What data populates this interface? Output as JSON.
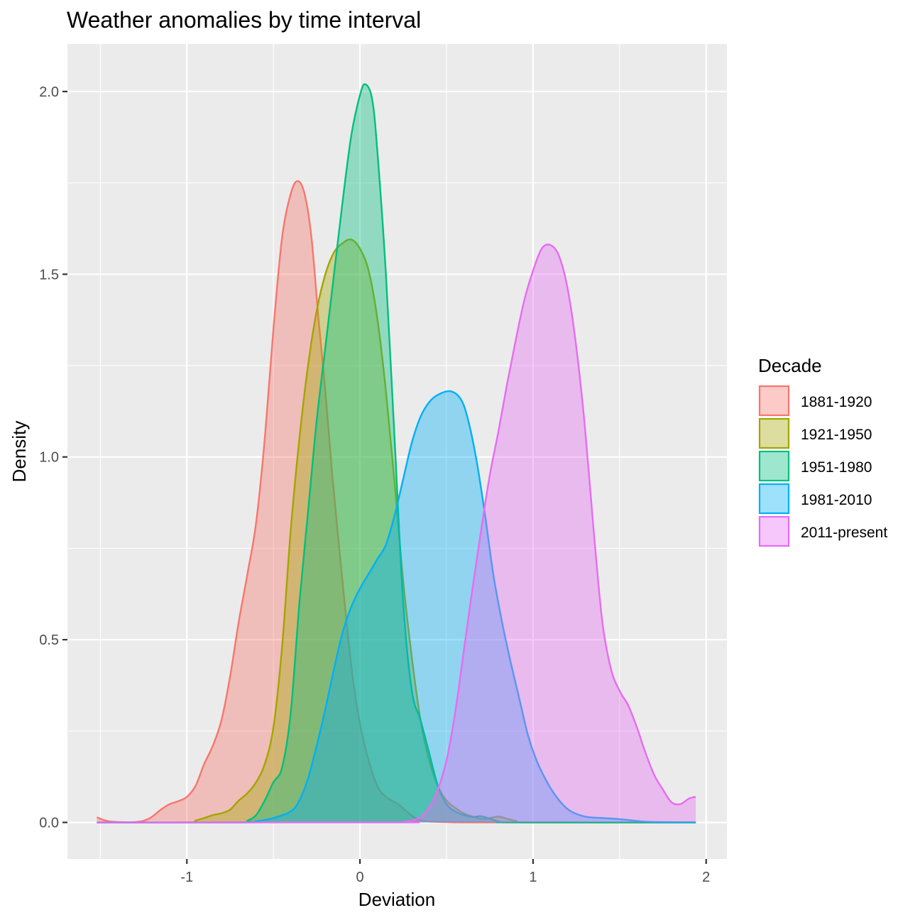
{
  "chart_data": {
    "type": "area",
    "subtype": "density",
    "title": "Weather anomalies by time interval",
    "xlabel": "Deviation",
    "ylabel": "Density",
    "xlim": [
      -1.69,
      2.12
    ],
    "ylim": [
      -0.1,
      2.13
    ],
    "x_ticks": [
      -1,
      0,
      1,
      2
    ],
    "x_tick_labels": [
      "-1",
      "0",
      "1",
      "2"
    ],
    "y_ticks": [
      0,
      0.5,
      1,
      1.5,
      2
    ],
    "y_tick_labels": [
      "0.0",
      "0.5",
      "1.0",
      "1.5",
      "2.0"
    ],
    "grid": true,
    "legend": {
      "title": "Decade",
      "position": "right"
    },
    "series": [
      {
        "name": "1881-1920",
        "color": "#F8766D",
        "points": [
          [
            -1.52,
            0.014
          ],
          [
            -1.45,
            0.003
          ],
          [
            -1.3,
            0.001
          ],
          [
            -1.22,
            0.01
          ],
          [
            -1.15,
            0.035
          ],
          [
            -1.1,
            0.05
          ],
          [
            -1.05,
            0.058
          ],
          [
            -1.0,
            0.07
          ],
          [
            -0.95,
            0.1
          ],
          [
            -0.9,
            0.16
          ],
          [
            -0.85,
            0.21
          ],
          [
            -0.8,
            0.28
          ],
          [
            -0.75,
            0.4
          ],
          [
            -0.7,
            0.55
          ],
          [
            -0.65,
            0.68
          ],
          [
            -0.6,
            0.82
          ],
          [
            -0.55,
            1.05
          ],
          [
            -0.5,
            1.35
          ],
          [
            -0.45,
            1.6
          ],
          [
            -0.4,
            1.72
          ],
          [
            -0.36,
            1.755
          ],
          [
            -0.32,
            1.72
          ],
          [
            -0.28,
            1.6
          ],
          [
            -0.24,
            1.38
          ],
          [
            -0.2,
            1.18
          ],
          [
            -0.16,
            0.95
          ],
          [
            -0.12,
            0.75
          ],
          [
            -0.08,
            0.56
          ],
          [
            -0.04,
            0.39
          ],
          [
            0.0,
            0.27
          ],
          [
            0.05,
            0.17
          ],
          [
            0.1,
            0.1
          ],
          [
            0.15,
            0.07
          ],
          [
            0.22,
            0.05
          ],
          [
            0.27,
            0.03
          ],
          [
            0.32,
            0.012
          ],
          [
            0.38,
            0.003
          ],
          [
            0.5,
            0.001
          ],
          [
            0.7,
            0.0
          ],
          [
            1.94,
            0.0
          ]
        ]
      },
      {
        "name": "1921-1950",
        "color": "#A3A500",
        "points": [
          [
            -1.52,
            0.0
          ],
          [
            -1.0,
            0.0
          ],
          [
            -0.95,
            0.005
          ],
          [
            -0.9,
            0.012
          ],
          [
            -0.85,
            0.02
          ],
          [
            -0.8,
            0.025
          ],
          [
            -0.75,
            0.035
          ],
          [
            -0.7,
            0.06
          ],
          [
            -0.65,
            0.08
          ],
          [
            -0.6,
            0.11
          ],
          [
            -0.55,
            0.16
          ],
          [
            -0.5,
            0.26
          ],
          [
            -0.45,
            0.48
          ],
          [
            -0.4,
            0.8
          ],
          [
            -0.35,
            1.05
          ],
          [
            -0.3,
            1.25
          ],
          [
            -0.25,
            1.4
          ],
          [
            -0.2,
            1.5
          ],
          [
            -0.15,
            1.56
          ],
          [
            -0.1,
            1.585
          ],
          [
            -0.05,
            1.595
          ],
          [
            0.0,
            1.57
          ],
          [
            0.05,
            1.51
          ],
          [
            0.1,
            1.38
          ],
          [
            0.15,
            1.18
          ],
          [
            0.2,
            0.93
          ],
          [
            0.25,
            0.66
          ],
          [
            0.3,
            0.45
          ],
          [
            0.35,
            0.28
          ],
          [
            0.4,
            0.17
          ],
          [
            0.45,
            0.1
          ],
          [
            0.5,
            0.06
          ],
          [
            0.55,
            0.04
          ],
          [
            0.6,
            0.025
          ],
          [
            0.65,
            0.016
          ],
          [
            0.7,
            0.01
          ],
          [
            0.75,
            0.012
          ],
          [
            0.8,
            0.016
          ],
          [
            0.85,
            0.01
          ],
          [
            0.9,
            0.004
          ],
          [
            1.0,
            0.0
          ],
          [
            1.94,
            0.0
          ]
        ]
      },
      {
        "name": "1951-1980",
        "color": "#00BF7D",
        "points": [
          [
            -1.52,
            0.0
          ],
          [
            -0.7,
            0.0
          ],
          [
            -0.65,
            0.005
          ],
          [
            -0.6,
            0.02
          ],
          [
            -0.55,
            0.06
          ],
          [
            -0.5,
            0.11
          ],
          [
            -0.45,
            0.15
          ],
          [
            -0.4,
            0.3
          ],
          [
            -0.35,
            0.6
          ],
          [
            -0.3,
            0.85
          ],
          [
            -0.25,
            1.1
          ],
          [
            -0.2,
            1.3
          ],
          [
            -0.15,
            1.5
          ],
          [
            -0.1,
            1.7
          ],
          [
            -0.05,
            1.88
          ],
          [
            0.0,
            1.99
          ],
          [
            0.03,
            2.02
          ],
          [
            0.07,
            1.98
          ],
          [
            0.1,
            1.84
          ],
          [
            0.15,
            1.5
          ],
          [
            0.2,
            1.05
          ],
          [
            0.25,
            0.6
          ],
          [
            0.3,
            0.36
          ],
          [
            0.35,
            0.28
          ],
          [
            0.4,
            0.19
          ],
          [
            0.45,
            0.1
          ],
          [
            0.5,
            0.05
          ],
          [
            0.55,
            0.03
          ],
          [
            0.6,
            0.02
          ],
          [
            0.65,
            0.015
          ],
          [
            0.7,
            0.017
          ],
          [
            0.75,
            0.01
          ],
          [
            0.8,
            0.003
          ],
          [
            0.9,
            0.0
          ],
          [
            1.94,
            0.0
          ]
        ]
      },
      {
        "name": "1981-2010",
        "color": "#00B0F6",
        "points": [
          [
            -1.52,
            0.0
          ],
          [
            -0.7,
            0.0
          ],
          [
            -0.6,
            0.003
          ],
          [
            -0.5,
            0.012
          ],
          [
            -0.4,
            0.03
          ],
          [
            -0.35,
            0.06
          ],
          [
            -0.3,
            0.12
          ],
          [
            -0.25,
            0.21
          ],
          [
            -0.2,
            0.31
          ],
          [
            -0.15,
            0.42
          ],
          [
            -0.1,
            0.52
          ],
          [
            -0.05,
            0.59
          ],
          [
            0.0,
            0.64
          ],
          [
            0.05,
            0.68
          ],
          [
            0.1,
            0.72
          ],
          [
            0.15,
            0.76
          ],
          [
            0.2,
            0.84
          ],
          [
            0.25,
            0.94
          ],
          [
            0.3,
            1.04
          ],
          [
            0.35,
            1.11
          ],
          [
            0.4,
            1.15
          ],
          [
            0.45,
            1.17
          ],
          [
            0.52,
            1.18
          ],
          [
            0.58,
            1.16
          ],
          [
            0.62,
            1.11
          ],
          [
            0.67,
            1.0
          ],
          [
            0.72,
            0.85
          ],
          [
            0.77,
            0.68
          ],
          [
            0.82,
            0.55
          ],
          [
            0.87,
            0.44
          ],
          [
            0.92,
            0.34
          ],
          [
            0.97,
            0.24
          ],
          [
            1.02,
            0.17
          ],
          [
            1.07,
            0.12
          ],
          [
            1.12,
            0.08
          ],
          [
            1.17,
            0.05
          ],
          [
            1.22,
            0.03
          ],
          [
            1.3,
            0.016
          ],
          [
            1.4,
            0.012
          ],
          [
            1.5,
            0.009
          ],
          [
            1.6,
            0.004
          ],
          [
            1.7,
            0.001
          ],
          [
            1.94,
            0.0
          ]
        ]
      },
      {
        "name": "2011-present",
        "color": "#E76BF3",
        "points": [
          [
            -1.52,
            0.0
          ],
          [
            0.2,
            0.0
          ],
          [
            0.25,
            0.001
          ],
          [
            0.3,
            0.005
          ],
          [
            0.35,
            0.015
          ],
          [
            0.4,
            0.04
          ],
          [
            0.45,
            0.09
          ],
          [
            0.5,
            0.17
          ],
          [
            0.55,
            0.3
          ],
          [
            0.6,
            0.47
          ],
          [
            0.65,
            0.64
          ],
          [
            0.7,
            0.8
          ],
          [
            0.75,
            0.95
          ],
          [
            0.8,
            1.07
          ],
          [
            0.85,
            1.2
          ],
          [
            0.9,
            1.32
          ],
          [
            0.95,
            1.43
          ],
          [
            1.0,
            1.51
          ],
          [
            1.05,
            1.57
          ],
          [
            1.1,
            1.58
          ],
          [
            1.15,
            1.55
          ],
          [
            1.2,
            1.46
          ],
          [
            1.25,
            1.3
          ],
          [
            1.3,
            1.08
          ],
          [
            1.35,
            0.8
          ],
          [
            1.4,
            0.55
          ],
          [
            1.45,
            0.42
          ],
          [
            1.5,
            0.36
          ],
          [
            1.55,
            0.32
          ],
          [
            1.6,
            0.26
          ],
          [
            1.65,
            0.19
          ],
          [
            1.7,
            0.13
          ],
          [
            1.75,
            0.09
          ],
          [
            1.8,
            0.055
          ],
          [
            1.85,
            0.05
          ],
          [
            1.9,
            0.065
          ],
          [
            1.94,
            0.07
          ]
        ]
      }
    ]
  }
}
